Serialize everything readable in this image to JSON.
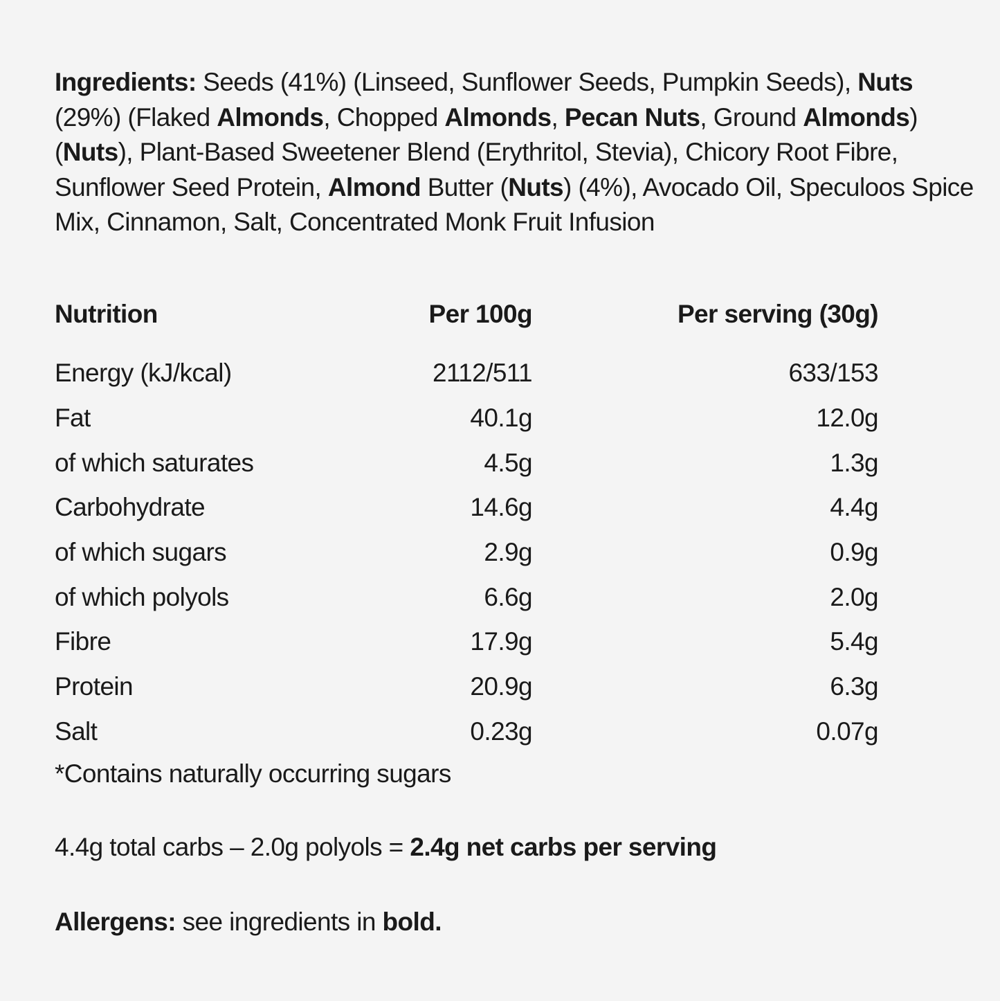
{
  "ingredients": {
    "label": "Ingredients:",
    "segments": [
      {
        "text": "Seeds (41%) (Linseed, Sunflower Seeds, Pumpkin Seeds), ",
        "bold": false
      },
      {
        "text": "Nuts",
        "bold": true
      },
      {
        "text": " (29%) (Flaked ",
        "bold": false
      },
      {
        "text": "Almonds",
        "bold": true
      },
      {
        "text": ", Chopped ",
        "bold": false
      },
      {
        "text": "Almonds",
        "bold": true
      },
      {
        "text": ", ",
        "bold": false
      },
      {
        "text": "Pecan Nuts",
        "bold": true
      },
      {
        "text": ", Ground ",
        "bold": false
      },
      {
        "text": "Almonds",
        "bold": true
      },
      {
        "text": ") (",
        "bold": false
      },
      {
        "text": "Nuts",
        "bold": true
      },
      {
        "text": "), Plant-Based Sweetener Blend (Erythritol, Stevia), Chicory Root Fibre, Sunflower Seed Protein, ",
        "bold": false
      },
      {
        "text": "Almond",
        "bold": true
      },
      {
        "text": " Butter (",
        "bold": false
      },
      {
        "text": "Nuts",
        "bold": true
      },
      {
        "text": ") (4%), Avocado Oil, Speculoos Spice Mix, Cinnamon, Salt, Concentrated Monk Fruit Infusion",
        "bold": false
      }
    ]
  },
  "nutrition": {
    "headers": {
      "name": "Nutrition",
      "per100": "Per 100g",
      "perServing": "Per serving (30g)"
    },
    "rows": [
      {
        "name": "Energy (kJ/kcal)",
        "per100": "2112/511",
        "perServing": "633/153"
      },
      {
        "name": "Fat",
        "per100": "40.1g",
        "perServing": "12.0g"
      },
      {
        "name": "of which saturates",
        "per100": "4.5g",
        "perServing": "1.3g"
      },
      {
        "name": "Carbohydrate",
        "per100": "14.6g",
        "perServing": "4.4g"
      },
      {
        "name": "of which sugars",
        "per100": "2.9g",
        "perServing": "0.9g"
      },
      {
        "name": "of which polyols",
        "per100": "6.6g",
        "perServing": "2.0g"
      },
      {
        "name": "Fibre",
        "per100": "17.9g",
        "perServing": "5.4g"
      },
      {
        "name": "Protein",
        "per100": "20.9g",
        "perServing": "6.3g"
      },
      {
        "name": "Salt",
        "per100": "0.23g",
        "perServing": "0.07g"
      }
    ],
    "footnote": "*Contains naturally occurring sugars"
  },
  "netCarbs": {
    "prefix": "4.4g total carbs – 2.0g polyols = ",
    "highlight": "2.4g net carbs per serving"
  },
  "allergens": {
    "label": "Allergens:",
    "text": " see ingredients in ",
    "emphasis": "bold."
  }
}
